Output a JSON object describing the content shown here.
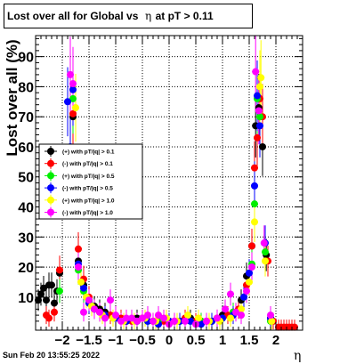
{
  "title": {
    "prefix": "Lost over all for Global vs",
    "symbol": "η",
    "suffix": "at pT > 0.11"
  },
  "footer": {
    "timestamp": "Sun Feb 20 13:55:25 2022"
  },
  "chart_data": {
    "type": "scatter",
    "title": "Lost over all for Global vs η at pT > 0.11",
    "xlabel": "η",
    "ylabel": "Lost over all (%)",
    "xlim": [
      -2.5,
      2.5
    ],
    "ylim": [
      -1,
      97
    ],
    "grid": true,
    "legend_position": "left-middle",
    "xticks": [
      {
        "value": -2,
        "label": "−2"
      },
      {
        "value": -1.5,
        "label": "−1.5"
      },
      {
        "value": -1,
        "label": "−1"
      },
      {
        "value": -0.5,
        "label": "−0.5"
      },
      {
        "value": 0,
        "label": "0"
      },
      {
        "value": 0.5,
        "label": "0.5"
      },
      {
        "value": 1,
        "label": "1"
      },
      {
        "value": 1.5,
        "label": "1.5"
      },
      {
        "value": 2,
        "label": "2"
      }
    ],
    "yticks": [
      {
        "value": 10,
        "label": "10"
      },
      {
        "value": 20,
        "label": "20"
      },
      {
        "value": 30,
        "label": "30"
      },
      {
        "value": 40,
        "label": "40"
      },
      {
        "value": 50,
        "label": "50"
      },
      {
        "value": 60,
        "label": "60"
      },
      {
        "value": 70,
        "label": "70"
      },
      {
        "value": 80,
        "label": "80"
      },
      {
        "value": 90,
        "label": "90"
      }
    ],
    "series": [
      {
        "name": "(+) with pT/|q| > 0.1",
        "color": "#000000",
        "points": [
          [
            -2.45,
            9
          ],
          [
            -2.4,
            11
          ],
          [
            -2.35,
            13
          ],
          [
            -2.3,
            9
          ],
          [
            -2.25,
            14
          ],
          [
            -2.2,
            14
          ],
          [
            -2.15,
            8
          ],
          [
            -2.1,
            12
          ],
          [
            -2.05,
            18
          ],
          [
            -1.8,
            70
          ],
          [
            -1.7,
            22
          ],
          [
            -1.6,
            14
          ],
          [
            -1.5,
            9
          ],
          [
            -1.4,
            7
          ],
          [
            -1.3,
            6
          ],
          [
            -1.2,
            5
          ],
          [
            -1.0,
            3
          ],
          [
            -0.8,
            2
          ],
          [
            -0.6,
            3
          ],
          [
            -0.4,
            2
          ],
          [
            -0.2,
            2
          ],
          [
            0.0,
            2
          ],
          [
            0.2,
            2
          ],
          [
            0.4,
            3
          ],
          [
            0.6,
            2
          ],
          [
            0.8,
            2
          ],
          [
            1.0,
            4
          ],
          [
            1.2,
            5
          ],
          [
            1.35,
            9
          ],
          [
            1.45,
            17
          ],
          [
            1.55,
            27
          ],
          [
            1.62,
            67
          ],
          [
            1.68,
            73
          ],
          [
            1.75,
            60
          ],
          [
            1.82,
            24
          ],
          [
            1.9,
            3
          ]
        ]
      },
      {
        "name": "(-) with pT/|q| > 0.1",
        "color": "#ff0000",
        "points": [
          [
            -2.3,
            4
          ],
          [
            -2.25,
            3
          ],
          [
            -2.15,
            5
          ],
          [
            -2.05,
            19
          ],
          [
            -1.8,
            71
          ],
          [
            -1.7,
            26
          ],
          [
            -1.6,
            16
          ],
          [
            -1.5,
            10
          ],
          [
            -1.4,
            6
          ],
          [
            -1.3,
            5
          ],
          [
            -1.1,
            4
          ],
          [
            -0.9,
            3
          ],
          [
            -0.7,
            2
          ],
          [
            -0.5,
            3
          ],
          [
            -0.3,
            2
          ],
          [
            -0.1,
            2
          ],
          [
            0.1,
            2
          ],
          [
            0.3,
            3
          ],
          [
            0.5,
            2
          ],
          [
            0.7,
            2
          ],
          [
            0.9,
            3
          ],
          [
            1.1,
            4
          ],
          [
            1.3,
            6
          ],
          [
            1.45,
            14
          ],
          [
            1.55,
            27
          ],
          [
            1.6,
            53
          ],
          [
            1.65,
            63
          ],
          [
            1.7,
            76
          ],
          [
            1.75,
            70
          ],
          [
            1.85,
            22
          ],
          [
            1.95,
            2
          ],
          [
            2.05,
            0
          ],
          [
            2.1,
            0
          ],
          [
            2.15,
            0
          ],
          [
            2.2,
            0
          ],
          [
            2.25,
            0
          ],
          [
            2.3,
            0
          ],
          [
            2.35,
            0
          ]
        ]
      },
      {
        "name": "(+) with pT/|q| > 0.5",
        "color": "#00ee00",
        "points": [
          [
            -2.05,
            12
          ],
          [
            -1.8,
            76
          ],
          [
            -1.7,
            19
          ],
          [
            -1.6,
            12
          ],
          [
            -1.5,
            8
          ],
          [
            -1.4,
            6
          ],
          [
            -1.2,
            4
          ],
          [
            -1.0,
            3
          ],
          [
            -0.8,
            2
          ],
          [
            -0.6,
            2
          ],
          [
            -0.4,
            2
          ],
          [
            -0.2,
            2
          ],
          [
            0.0,
            2
          ],
          [
            0.2,
            2
          ],
          [
            0.4,
            2
          ],
          [
            0.6,
            2
          ],
          [
            0.8,
            2
          ],
          [
            1.0,
            3
          ],
          [
            1.2,
            5
          ],
          [
            1.4,
            10
          ],
          [
            1.55,
            21
          ],
          [
            1.6,
            41
          ],
          [
            1.65,
            76
          ],
          [
            1.7,
            70
          ],
          [
            1.8,
            25
          ],
          [
            1.9,
            2
          ]
        ]
      },
      {
        "name": "(-) with pT/|q| > 0.5",
        "color": "#0000ff",
        "points": [
          [
            -1.9,
            75
          ],
          [
            -1.85,
            60
          ],
          [
            -1.8,
            79
          ],
          [
            -1.7,
            21
          ],
          [
            -1.6,
            13
          ],
          [
            -1.5,
            8
          ],
          [
            -1.4,
            6
          ],
          [
            -1.2,
            4
          ],
          [
            -1.0,
            3
          ],
          [
            -0.8,
            2
          ],
          [
            -0.6,
            2
          ],
          [
            -0.4,
            2
          ],
          [
            -0.2,
            1
          ],
          [
            0.0,
            2
          ],
          [
            0.2,
            2
          ],
          [
            0.4,
            2
          ],
          [
            0.6,
            1
          ],
          [
            0.8,
            2
          ],
          [
            1.0,
            3
          ],
          [
            1.2,
            4
          ],
          [
            1.4,
            10
          ],
          [
            1.5,
            18
          ],
          [
            1.6,
            47
          ],
          [
            1.65,
            77
          ],
          [
            1.7,
            67
          ],
          [
            1.8,
            28
          ],
          [
            1.9,
            3
          ]
        ]
      },
      {
        "name": "(+) with pT/|q| > 1.0",
        "color": "#ffff00",
        "points": [
          [
            -1.75,
            73
          ],
          [
            -1.65,
            15
          ],
          [
            -1.55,
            10
          ],
          [
            -1.45,
            7
          ],
          [
            -1.25,
            4
          ],
          [
            -1.05,
            3
          ],
          [
            -0.85,
            2
          ],
          [
            -0.65,
            2
          ],
          [
            -0.45,
            3
          ],
          [
            -0.25,
            2
          ],
          [
            -0.05,
            3
          ],
          [
            0.15,
            2
          ],
          [
            0.35,
            4
          ],
          [
            0.55,
            3
          ],
          [
            0.75,
            2
          ],
          [
            0.95,
            2
          ],
          [
            1.15,
            3
          ],
          [
            1.35,
            6
          ],
          [
            1.5,
            15
          ],
          [
            1.6,
            35
          ],
          [
            1.7,
            80
          ],
          [
            1.72,
            83
          ],
          [
            1.8,
            22
          ],
          [
            1.92,
            2
          ]
        ]
      },
      {
        "name": "(-) with pT/|q| > 1.0",
        "color": "#ff00ff",
        "points": [
          [
            -1.85,
            84
          ],
          [
            -1.8,
            81
          ],
          [
            -1.7,
            20
          ],
          [
            -1.6,
            5
          ],
          [
            -1.5,
            9
          ],
          [
            -1.4,
            6
          ],
          [
            -1.3,
            5
          ],
          [
            -1.2,
            3
          ],
          [
            -1.1,
            9
          ],
          [
            -1.0,
            4
          ],
          [
            -0.9,
            2
          ],
          [
            -0.8,
            3
          ],
          [
            -0.7,
            3
          ],
          [
            -0.6,
            2
          ],
          [
            -0.5,
            3
          ],
          [
            -0.4,
            4
          ],
          [
            -0.3,
            2
          ],
          [
            -0.2,
            4
          ],
          [
            -0.1,
            3
          ],
          [
            0.0,
            1
          ],
          [
            0.1,
            2
          ],
          [
            0.3,
            2
          ],
          [
            0.5,
            1
          ],
          [
            0.7,
            2
          ],
          [
            0.9,
            3
          ],
          [
            1.05,
            6
          ],
          [
            1.15,
            11
          ],
          [
            1.25,
            5
          ],
          [
            1.35,
            4
          ],
          [
            1.45,
            12
          ],
          [
            1.55,
            20
          ],
          [
            1.62,
            85
          ],
          [
            1.68,
            72
          ],
          [
            1.78,
            28
          ],
          [
            1.9,
            4
          ]
        ]
      }
    ]
  }
}
